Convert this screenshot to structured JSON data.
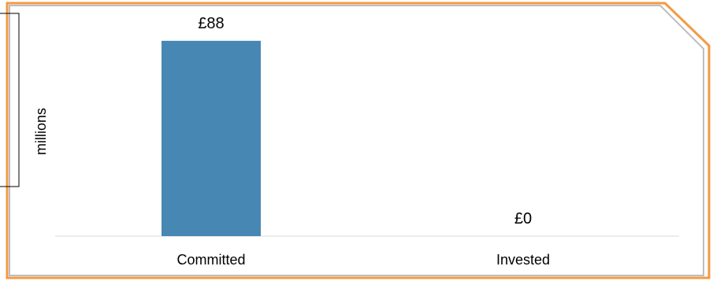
{
  "chart_data": {
    "type": "bar",
    "categories": [
      "Committed",
      "Invested"
    ],
    "values": [
      88,
      0
    ],
    "data_labels": [
      "£88",
      "£0"
    ],
    "ylabel": "millions",
    "ylim": [
      0,
      100
    ],
    "grid": false,
    "legend": "none",
    "colors": {
      "bar": "#4787B4",
      "frame": "#F39A44",
      "frame_shadow": "#BDBDBD",
      "axis": "#D9D9D9"
    }
  }
}
